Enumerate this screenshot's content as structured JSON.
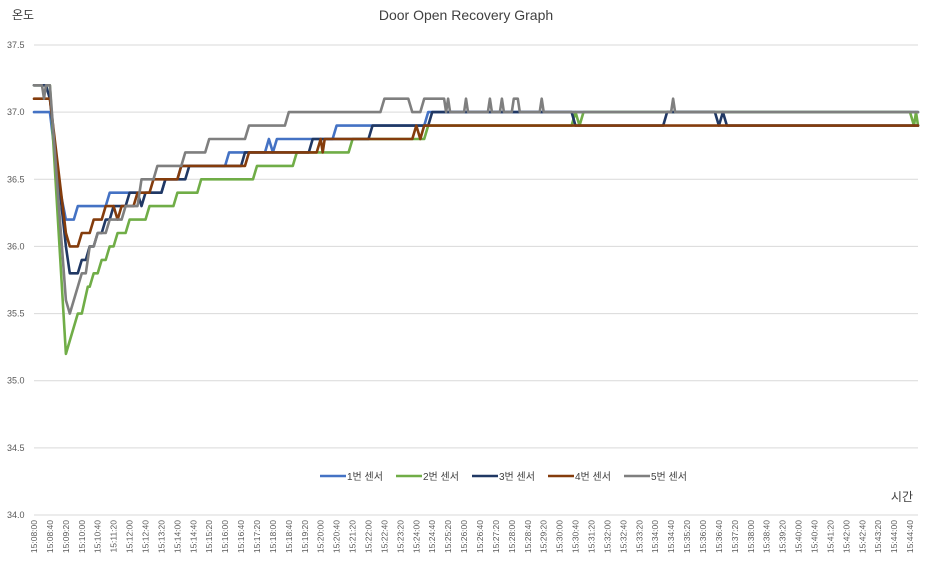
{
  "chart_data": {
    "type": "line",
    "title": "Door Open Recovery Graph",
    "ylabel": "온도",
    "xlabel": "시간",
    "ylim": [
      34.0,
      37.5
    ],
    "yticks": [
      "34.0",
      "34.5",
      "35.0",
      "35.5",
      "36.0",
      "36.5",
      "37.0",
      "37.5"
    ],
    "grid": "horizontal",
    "legend_position": "bottom-center",
    "x_start": "15:08:00",
    "x_end": "15:45:00",
    "x_tick_labels": [
      "15:08:00",
      "15:08:40",
      "15:09:20",
      "15:10:00",
      "15:10:40",
      "15:11:20",
      "15:12:00",
      "15:12:40",
      "15:13:20",
      "15:14:00",
      "15:14:40",
      "15:15:20",
      "15:16:00",
      "15:16:40",
      "15:17:20",
      "15:18:00",
      "15:18:40",
      "15:19:20",
      "15:20:00",
      "15:20:40",
      "15:21:20",
      "15:22:00",
      "15:22:40",
      "15:23:20",
      "15:24:00",
      "15:24:40",
      "15:25:20",
      "15:26:00",
      "15:26:40",
      "15:27:20",
      "15:28:00",
      "15:28:40",
      "15:29:20",
      "15:30:00",
      "15:30:40",
      "15:31:20",
      "15:32:00",
      "15:32:40",
      "15:33:20",
      "15:34:00",
      "15:34:40",
      "15:35:20",
      "15:36:00",
      "15:36:40",
      "15:37:20",
      "15:38:00",
      "15:38:40",
      "15:39:20",
      "15:40:00",
      "15:40:40",
      "15:41:20",
      "15:42:00",
      "15:42:40",
      "15:43:20",
      "15:44:00",
      "15:44:40"
    ],
    "series": [
      {
        "name": "1번 센서",
        "color": "#4472C4",
        "points": [
          [
            "15:08:00",
            37.0
          ],
          [
            "15:08:40",
            37.0
          ],
          [
            "15:09:00",
            36.5
          ],
          [
            "15:09:20",
            36.2
          ],
          [
            "15:09:40",
            36.2
          ],
          [
            "15:09:50",
            36.3
          ],
          [
            "15:11:00",
            36.3
          ],
          [
            "15:11:10",
            36.4
          ],
          [
            "15:13:20",
            36.4
          ],
          [
            "15:13:30",
            36.5
          ],
          [
            "15:14:00",
            36.5
          ],
          [
            "15:14:10",
            36.6
          ],
          [
            "15:16:00",
            36.6
          ],
          [
            "15:16:10",
            36.7
          ],
          [
            "15:17:40",
            36.7
          ],
          [
            "15:17:50",
            36.8
          ],
          [
            "15:18:00",
            36.7
          ],
          [
            "15:18:10",
            36.8
          ],
          [
            "15:20:30",
            36.8
          ],
          [
            "15:20:40",
            36.9
          ],
          [
            "15:24:20",
            36.9
          ],
          [
            "15:24:30",
            37.0
          ],
          [
            "15:45:00",
            37.0
          ]
        ]
      },
      {
        "name": "2번 센서",
        "color": "#70AD47",
        "points": [
          [
            "15:08:00",
            37.2
          ],
          [
            "15:08:40",
            37.2
          ],
          [
            "15:09:20",
            35.2
          ],
          [
            "15:09:50",
            35.5
          ],
          [
            "15:10:00",
            35.5
          ],
          [
            "15:10:15",
            35.7
          ],
          [
            "15:10:20",
            35.7
          ],
          [
            "15:10:30",
            35.8
          ],
          [
            "15:10:40",
            35.8
          ],
          [
            "15:10:50",
            35.9
          ],
          [
            "15:11:00",
            35.9
          ],
          [
            "15:11:10",
            36.0
          ],
          [
            "15:11:20",
            36.0
          ],
          [
            "15:11:30",
            36.1
          ],
          [
            "15:11:50",
            36.1
          ],
          [
            "15:12:00",
            36.2
          ],
          [
            "15:12:40",
            36.2
          ],
          [
            "15:12:50",
            36.3
          ],
          [
            "15:13:50",
            36.3
          ],
          [
            "15:14:00",
            36.4
          ],
          [
            "15:14:50",
            36.4
          ],
          [
            "15:15:00",
            36.5
          ],
          [
            "15:17:10",
            36.5
          ],
          [
            "15:17:20",
            36.6
          ],
          [
            "15:18:50",
            36.6
          ],
          [
            "15:19:00",
            36.7
          ],
          [
            "15:21:10",
            36.7
          ],
          [
            "15:21:20",
            36.8
          ],
          [
            "15:24:20",
            36.8
          ],
          [
            "15:24:30",
            36.9
          ],
          [
            "15:30:30",
            36.9
          ],
          [
            "15:30:40",
            37.0
          ],
          [
            "15:30:50",
            36.9
          ],
          [
            "15:31:00",
            37.0
          ],
          [
            "15:44:40",
            37.0
          ],
          [
            "15:44:50",
            36.9
          ],
          [
            "15:44:55",
            37.0
          ],
          [
            "15:45:00",
            36.9
          ]
        ]
      },
      {
        "name": "3번 센서",
        "color": "#203864",
        "points": [
          [
            "15:08:00",
            37.2
          ],
          [
            "15:08:30",
            37.2
          ],
          [
            "15:08:40",
            37.1
          ],
          [
            "15:09:20",
            36.0
          ],
          [
            "15:09:30",
            35.8
          ],
          [
            "15:09:50",
            35.8
          ],
          [
            "15:10:00",
            35.9
          ],
          [
            "15:10:10",
            35.9
          ],
          [
            "15:10:20",
            36.0
          ],
          [
            "15:10:30",
            36.0
          ],
          [
            "15:10:40",
            36.1
          ],
          [
            "15:10:50",
            36.1
          ],
          [
            "15:11:00",
            36.2
          ],
          [
            "15:11:10",
            36.2
          ],
          [
            "15:11:20",
            36.3
          ],
          [
            "15:11:50",
            36.3
          ],
          [
            "15:12:00",
            36.4
          ],
          [
            "15:12:20",
            36.4
          ],
          [
            "15:12:30",
            36.3
          ],
          [
            "15:12:40",
            36.4
          ],
          [
            "15:13:20",
            36.4
          ],
          [
            "15:13:30",
            36.5
          ],
          [
            "15:14:20",
            36.5
          ],
          [
            "15:14:30",
            36.6
          ],
          [
            "15:16:40",
            36.6
          ],
          [
            "15:16:50",
            36.7
          ],
          [
            "15:19:30",
            36.7
          ],
          [
            "15:19:40",
            36.8
          ],
          [
            "15:22:00",
            36.8
          ],
          [
            "15:22:10",
            36.9
          ],
          [
            "15:24:30",
            36.9
          ],
          [
            "15:24:40",
            37.0
          ],
          [
            "15:30:30",
            37.0
          ],
          [
            "15:30:40",
            36.9
          ],
          [
            "15:34:20",
            36.9
          ],
          [
            "15:34:30",
            37.0
          ],
          [
            "15:36:30",
            37.0
          ],
          [
            "15:36:40",
            36.9
          ],
          [
            "15:36:50",
            37.0
          ],
          [
            "15:37:00",
            36.9
          ],
          [
            "15:45:00",
            36.9
          ]
        ]
      },
      {
        "name": "4번 센서",
        "color": "#843C0C",
        "points": [
          [
            "15:08:00",
            37.1
          ],
          [
            "15:08:40",
            37.1
          ],
          [
            "15:09:00",
            36.6
          ],
          [
            "15:09:20",
            36.1
          ],
          [
            "15:09:30",
            36.0
          ],
          [
            "15:09:50",
            36.0
          ],
          [
            "15:10:00",
            36.1
          ],
          [
            "15:10:20",
            36.1
          ],
          [
            "15:10:30",
            36.2
          ],
          [
            "15:10:50",
            36.2
          ],
          [
            "15:11:00",
            36.3
          ],
          [
            "15:11:20",
            36.3
          ],
          [
            "15:11:30",
            36.2
          ],
          [
            "15:11:40",
            36.3
          ],
          [
            "15:12:10",
            36.3
          ],
          [
            "15:12:20",
            36.4
          ],
          [
            "15:12:50",
            36.4
          ],
          [
            "15:13:00",
            36.5
          ],
          [
            "15:14:00",
            36.5
          ],
          [
            "15:14:10",
            36.6
          ],
          [
            "15:16:50",
            36.6
          ],
          [
            "15:17:00",
            36.7
          ],
          [
            "15:19:50",
            36.7
          ],
          [
            "15:20:00",
            36.8
          ],
          [
            "15:20:05",
            36.7
          ],
          [
            "15:20:10",
            36.8
          ],
          [
            "15:23:50",
            36.8
          ],
          [
            "15:24:00",
            36.9
          ],
          [
            "15:24:10",
            36.8
          ],
          [
            "15:24:20",
            36.9
          ],
          [
            "15:45:00",
            36.9
          ]
        ]
      },
      {
        "name": "5번 센서",
        "color": "#7F7F7F",
        "points": [
          [
            "15:08:00",
            37.2
          ],
          [
            "15:08:20",
            37.2
          ],
          [
            "15:08:25",
            37.1
          ],
          [
            "15:08:30",
            37.2
          ],
          [
            "15:08:40",
            37.2
          ],
          [
            "15:09:20",
            35.6
          ],
          [
            "15:09:30",
            35.5
          ],
          [
            "15:09:50",
            35.7
          ],
          [
            "15:10:00",
            35.8
          ],
          [
            "15:10:10",
            35.8
          ],
          [
            "15:10:20",
            36.0
          ],
          [
            "15:10:30",
            36.0
          ],
          [
            "15:10:40",
            36.1
          ],
          [
            "15:11:00",
            36.1
          ],
          [
            "15:11:10",
            36.2
          ],
          [
            "15:11:40",
            36.2
          ],
          [
            "15:11:50",
            36.3
          ],
          [
            "15:12:20",
            36.3
          ],
          [
            "15:12:30",
            36.5
          ],
          [
            "15:13:00",
            36.5
          ],
          [
            "15:13:10",
            36.6
          ],
          [
            "15:14:10",
            36.6
          ],
          [
            "15:14:20",
            36.7
          ],
          [
            "15:15:10",
            36.7
          ],
          [
            "15:15:20",
            36.8
          ],
          [
            "15:16:40",
            36.8
          ],
          [
            "15:16:50",
            36.8
          ],
          [
            "15:17:00",
            36.9
          ],
          [
            "15:18:30",
            36.9
          ],
          [
            "15:18:40",
            37.0
          ],
          [
            "15:22:30",
            37.0
          ],
          [
            "15:22:40",
            37.1
          ],
          [
            "15:23:40",
            37.1
          ],
          [
            "15:23:50",
            37.0
          ],
          [
            "15:24:10",
            37.0
          ],
          [
            "15:24:20",
            37.1
          ],
          [
            "15:25:10",
            37.1
          ],
          [
            "15:25:15",
            37.0
          ],
          [
            "15:25:20",
            37.1
          ],
          [
            "15:25:25",
            37.0
          ],
          [
            "15:26:00",
            37.0
          ],
          [
            "15:26:05",
            37.1
          ],
          [
            "15:26:10",
            37.0
          ],
          [
            "15:27:00",
            37.0
          ],
          [
            "15:27:05",
            37.1
          ],
          [
            "15:27:10",
            37.0
          ],
          [
            "15:27:30",
            37.0
          ],
          [
            "15:27:35",
            37.1
          ],
          [
            "15:27:40",
            37.0
          ],
          [
            "15:28:00",
            37.0
          ],
          [
            "15:28:05",
            37.1
          ],
          [
            "15:28:15",
            37.1
          ],
          [
            "15:28:20",
            37.0
          ],
          [
            "15:29:10",
            37.0
          ],
          [
            "15:29:15",
            37.1
          ],
          [
            "15:29:20",
            37.0
          ],
          [
            "15:34:40",
            37.0
          ],
          [
            "15:34:45",
            37.1
          ],
          [
            "15:34:50",
            37.0
          ],
          [
            "15:45:00",
            37.0
          ]
        ]
      }
    ]
  }
}
